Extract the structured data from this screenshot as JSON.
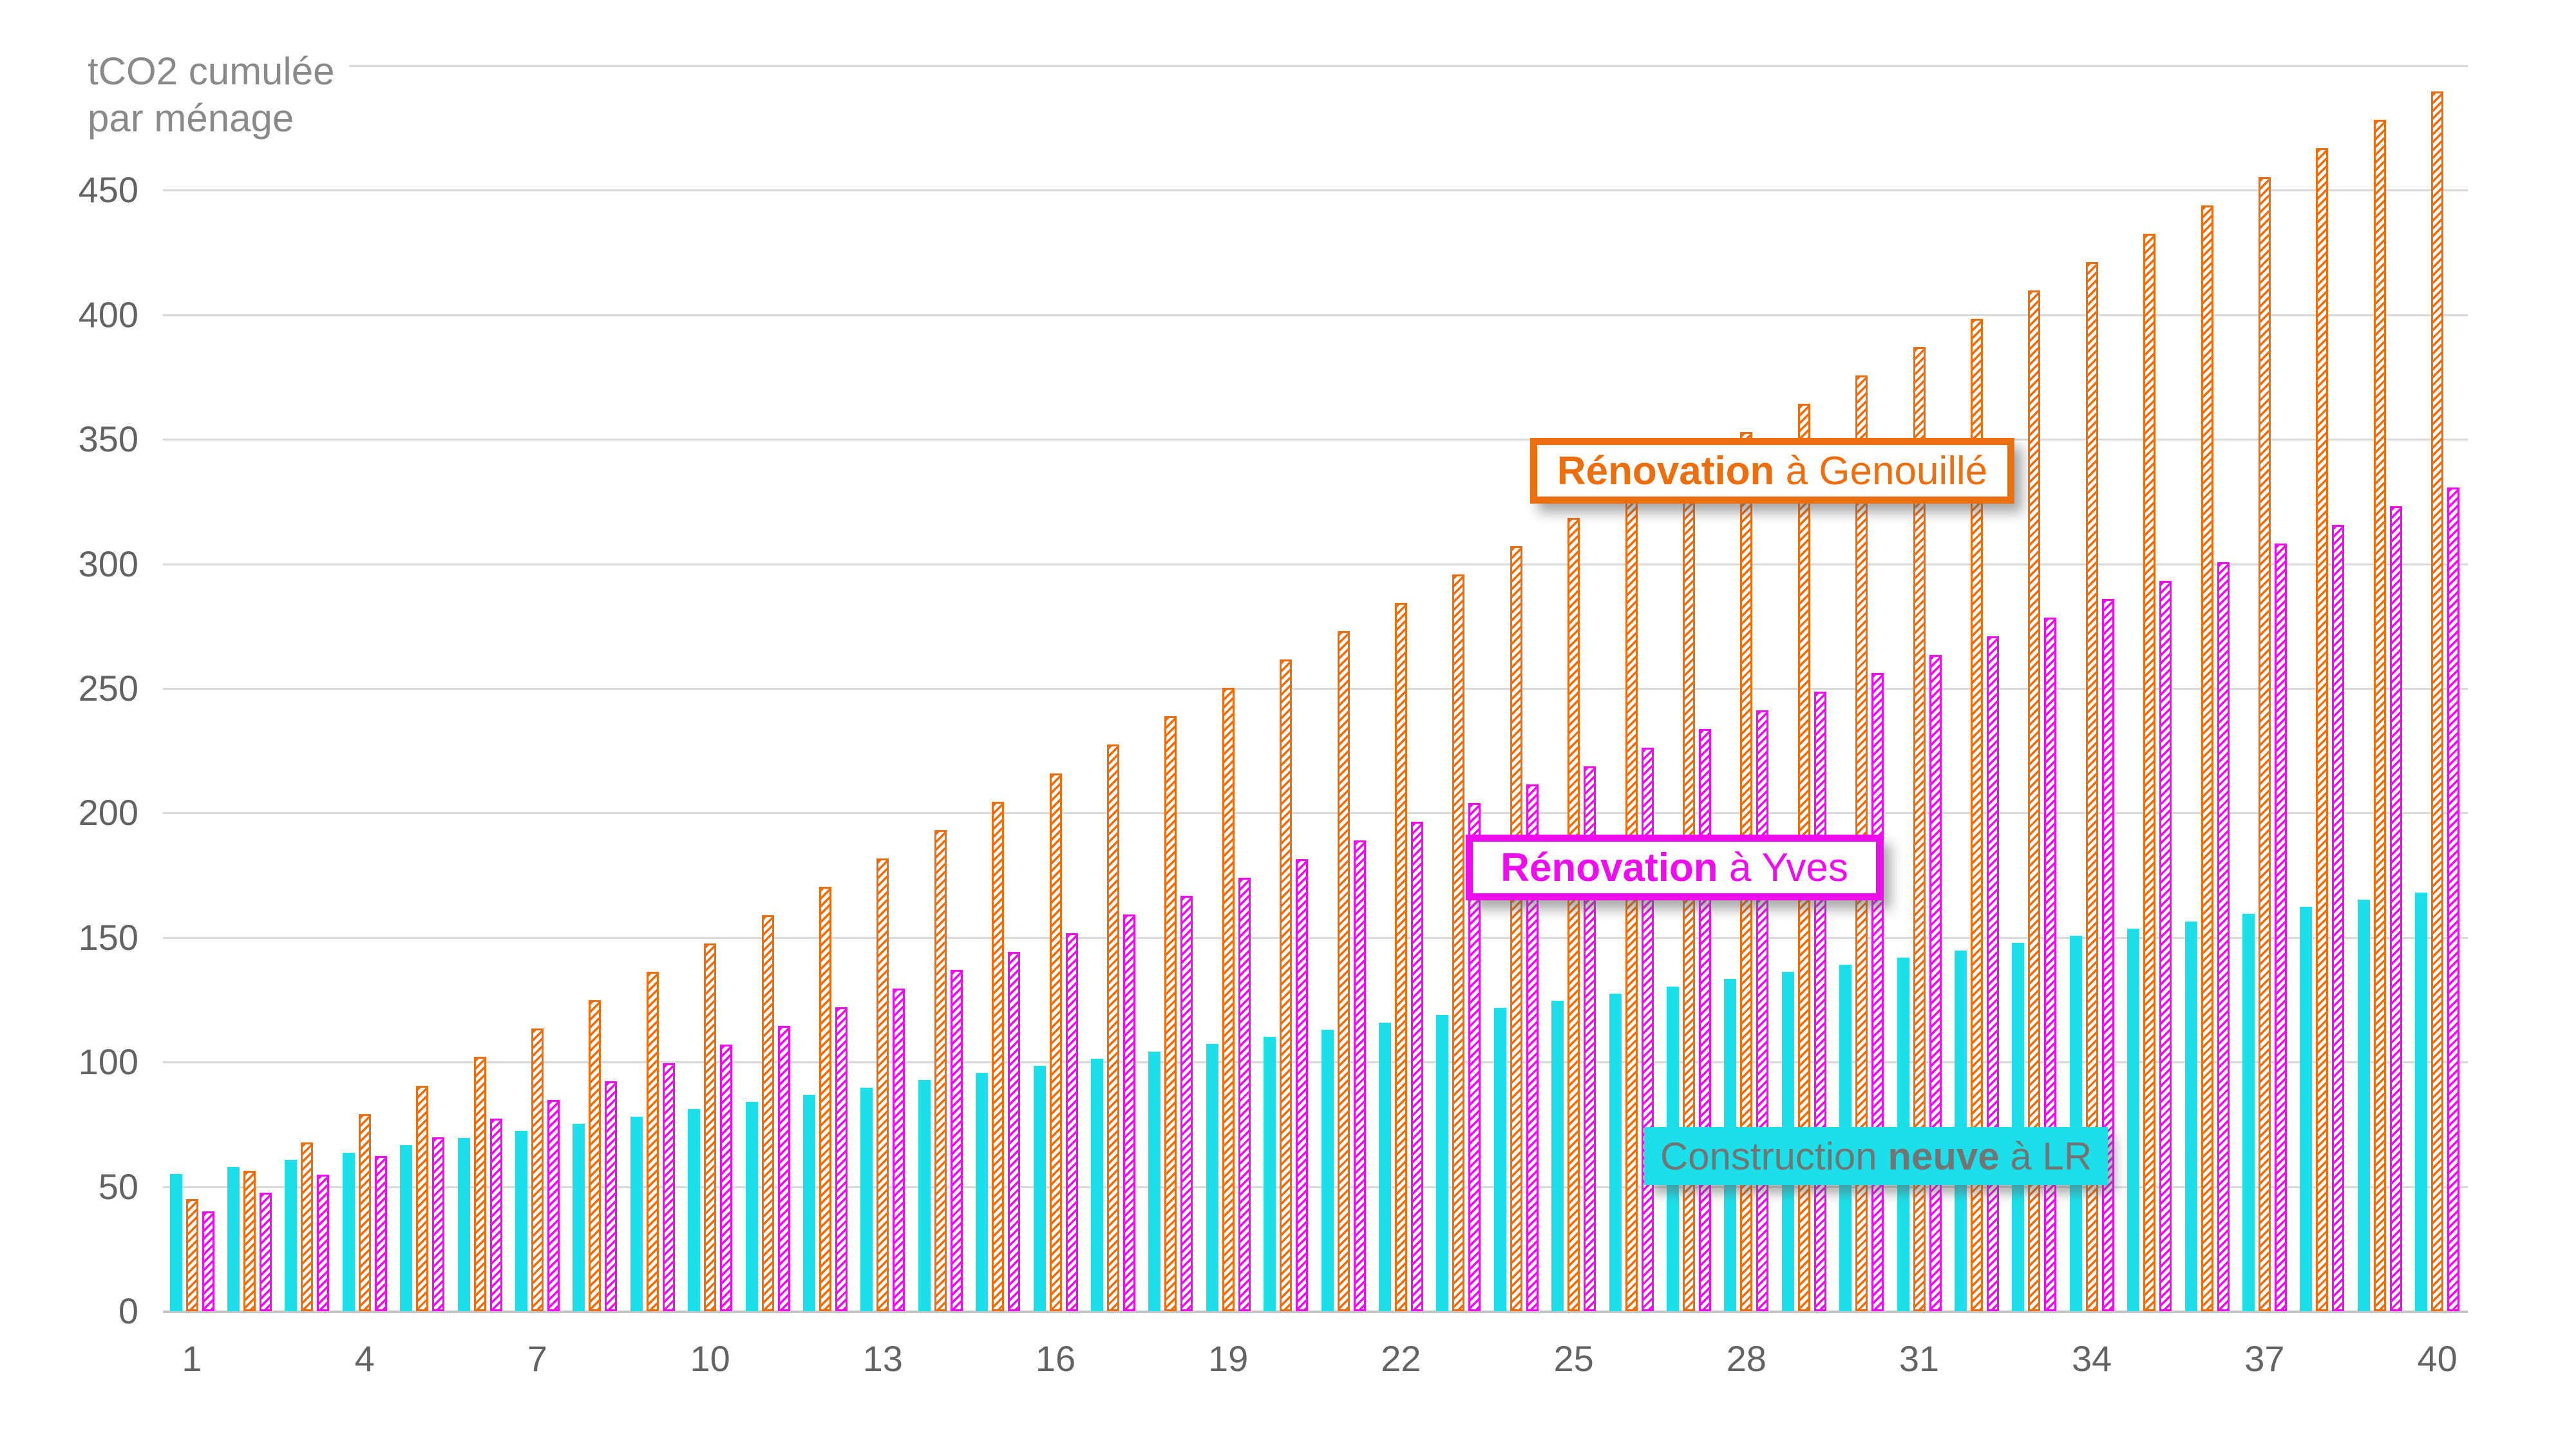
{
  "y_axis_title": {
    "line1": "tCO2 cumulée",
    "line2": "par ménage"
  },
  "annotations": {
    "genouille": {
      "bold": "Rénovation",
      "regular": " à Genouillé"
    },
    "yves": {
      "bold": "Rénovation",
      "regular": " à Yves"
    },
    "construction": {
      "pre": "Construction ",
      "bold": "neuve",
      "post": " à LR"
    }
  },
  "colors": {
    "orange": "#EC6E0E",
    "magenta": "#ED0DED",
    "cyan": "#1CDFE9",
    "gridline": "#D9D9D9",
    "axis_line": "#C6C6C6",
    "tick_text": "#636363",
    "title_text": "#8A8A8A",
    "construction_text": "#747474",
    "background": "#FFFFFF"
  },
  "chart_data": {
    "type": "bar",
    "title": "",
    "ylabel": "tCO2 cumulée par ménage",
    "xlabel": "",
    "ylim": [
      0,
      500
    ],
    "y_ticks": [
      0,
      50,
      100,
      150,
      200,
      250,
      300,
      350,
      400,
      450
    ],
    "top_border_value": 500,
    "grid": "horizontal",
    "legend_position": "floating-callouts",
    "x": [
      1,
      2,
      3,
      4,
      5,
      6,
      7,
      8,
      9,
      10,
      11,
      12,
      13,
      14,
      15,
      16,
      17,
      18,
      19,
      20,
      21,
      22,
      23,
      24,
      25,
      26,
      27,
      28,
      29,
      30,
      31,
      32,
      33,
      34,
      35,
      36,
      37,
      38,
      39,
      40
    ],
    "x_tick_labels": [
      1,
      4,
      7,
      10,
      13,
      16,
      19,
      22,
      25,
      28,
      31,
      34,
      37,
      40
    ],
    "series": [
      {
        "name": "Construction neuve à LR",
        "style": "solid",
        "color_key": "cyan",
        "values": [
          55.0,
          57.9,
          60.8,
          63.7,
          66.6,
          69.5,
          72.4,
          75.3,
          78.2,
          81.1,
          84.0,
          86.9,
          89.8,
          92.7,
          95.6,
          98.5,
          101.4,
          104.3,
          107.2,
          110.1,
          113.0,
          115.9,
          118.8,
          121.7,
          124.6,
          127.5,
          130.4,
          133.3,
          136.2,
          139.1,
          142.0,
          144.9,
          147.8,
          150.7,
          153.6,
          156.5,
          159.4,
          162.3,
          165.2,
          168.1
        ]
      },
      {
        "name": "Rénovation à Genouillé",
        "style": "hatch",
        "color_key": "orange",
        "values": [
          45.0,
          56.4,
          67.8,
          79.2,
          90.6,
          102.0,
          113.4,
          124.8,
          136.2,
          147.6,
          159.0,
          170.4,
          181.8,
          193.2,
          204.6,
          216.0,
          227.4,
          238.8,
          250.2,
          261.6,
          273.0,
          284.4,
          295.8,
          307.2,
          318.6,
          330.0,
          341.4,
          352.8,
          364.2,
          375.6,
          387.0,
          398.4,
          409.8,
          421.2,
          432.6,
          444.0,
          455.4,
          466.8,
          478.2,
          489.6
        ]
      },
      {
        "name": "Rénovation à Yves",
        "style": "hatch",
        "color_key": "magenta",
        "values": [
          40.0,
          47.5,
          54.9,
          62.4,
          69.8,
          77.3,
          84.7,
          92.2,
          99.6,
          107.1,
          114.5,
          122.0,
          129.4,
          136.9,
          144.3,
          151.8,
          159.2,
          166.7,
          174.1,
          181.6,
          189.0,
          196.5,
          203.9,
          211.4,
          218.8,
          226.3,
          233.7,
          241.2,
          248.6,
          256.1,
          263.5,
          271.0,
          278.4,
          285.9,
          293.3,
          300.8,
          308.2,
          315.7,
          323.1,
          330.6
        ]
      }
    ]
  }
}
